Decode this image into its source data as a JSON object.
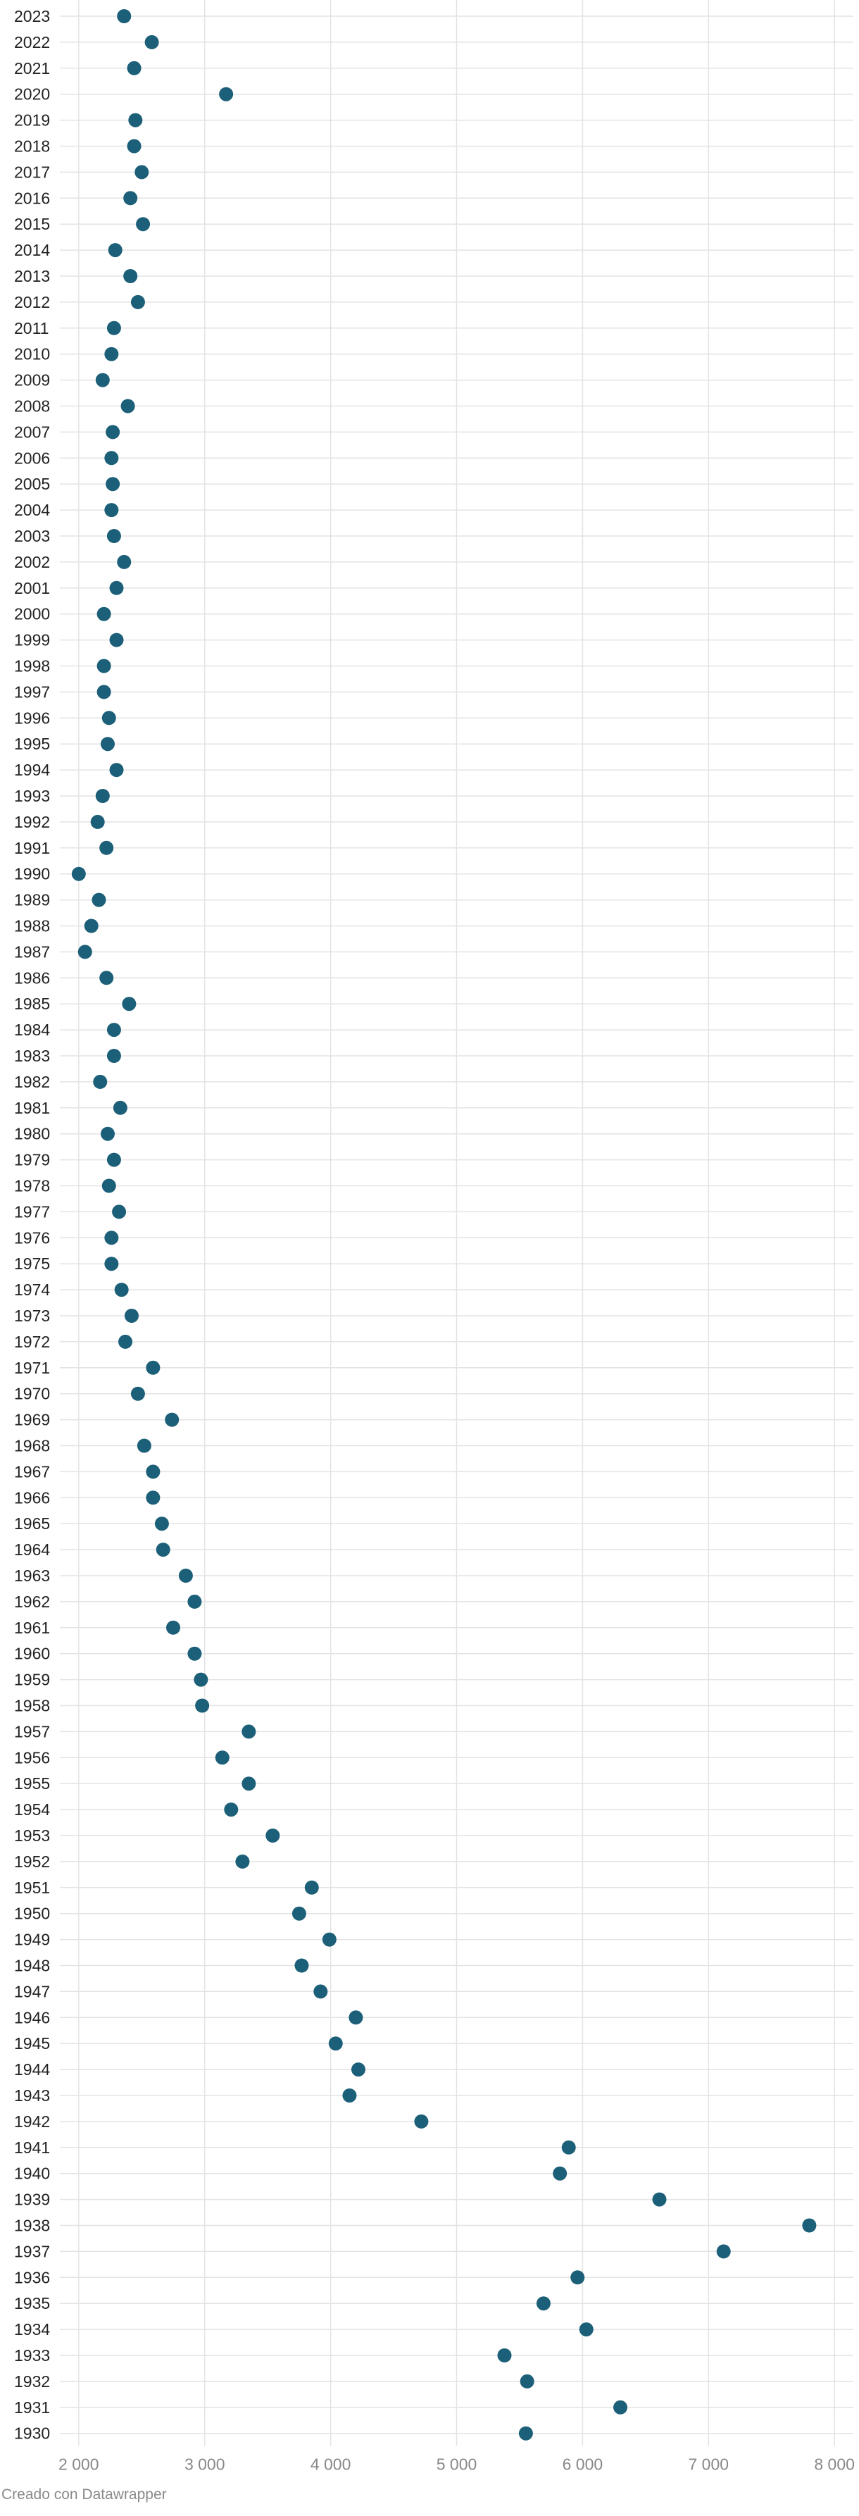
{
  "colors": {
    "dot": "#1c5f78",
    "grid": "#e3e3e3",
    "label": "#222222",
    "tick": "#888888",
    "credit": "#8a8a8a"
  },
  "credit": "Creado con Datawrapper",
  "chart_data": {
    "type": "scatter",
    "title": "",
    "xlabel": "",
    "ylabel": "",
    "xlim": [
      1850,
      8150
    ],
    "x_ticks": [
      2000,
      3000,
      4000,
      5000,
      6000,
      7000,
      8000
    ],
    "x_tick_labels": [
      "2 000",
      "3 000",
      "4 000",
      "5 000",
      "6 000",
      "7 000",
      "8 000"
    ],
    "grid": true,
    "legend": "none",
    "categories": [
      "2023",
      "2022",
      "2021",
      "2020",
      "2019",
      "2018",
      "2017",
      "2016",
      "2015",
      "2014",
      "2013",
      "2012",
      "2011",
      "2010",
      "2009",
      "2008",
      "2007",
      "2006",
      "2005",
      "2004",
      "2003",
      "2002",
      "2001",
      "2000",
      "1999",
      "1998",
      "1997",
      "1996",
      "1995",
      "1994",
      "1993",
      "1992",
      "1991",
      "1990",
      "1989",
      "1988",
      "1987",
      "1986",
      "1985",
      "1984",
      "1983",
      "1982",
      "1981",
      "1980",
      "1979",
      "1978",
      "1977",
      "1976",
      "1975",
      "1974",
      "1973",
      "1972",
      "1971",
      "1970",
      "1969",
      "1968",
      "1967",
      "1966",
      "1965",
      "1964",
      "1963",
      "1962",
      "1961",
      "1960",
      "1959",
      "1958",
      "1957",
      "1956",
      "1955",
      "1954",
      "1953",
      "1952",
      "1951",
      "1950",
      "1949",
      "1948",
      "1947",
      "1946",
      "1945",
      "1944",
      "1943",
      "1942",
      "1941",
      "1940",
      "1939",
      "1938",
      "1937",
      "1936",
      "1935",
      "1934",
      "1933",
      "1932",
      "1931",
      "1930"
    ],
    "values": [
      2360,
      2580,
      2440,
      3170,
      2450,
      2440,
      2500,
      2410,
      2510,
      2290,
      2410,
      2470,
      2280,
      2260,
      2190,
      2390,
      2270,
      2260,
      2270,
      2260,
      2280,
      2360,
      2300,
      2200,
      2300,
      2200,
      2200,
      2240,
      2230,
      2300,
      2190,
      2150,
      2220,
      2000,
      2160,
      2100,
      2050,
      2220,
      2400,
      2280,
      2280,
      2170,
      2330,
      2230,
      2280,
      2240,
      2320,
      2260,
      2260,
      2340,
      2420,
      2370,
      2590,
      2470,
      2740,
      2520,
      2590,
      2590,
      2660,
      2670,
      2850,
      2920,
      2750,
      2920,
      2970,
      2980,
      3350,
      3140,
      3350,
      3210,
      3540,
      3300,
      3850,
      3750,
      3990,
      3770,
      3920,
      4200,
      4040,
      4220,
      4150,
      4720,
      5890,
      5820,
      6610,
      7800,
      7120,
      5960,
      5690,
      6030,
      5380,
      5560,
      6300,
      5550
    ]
  }
}
